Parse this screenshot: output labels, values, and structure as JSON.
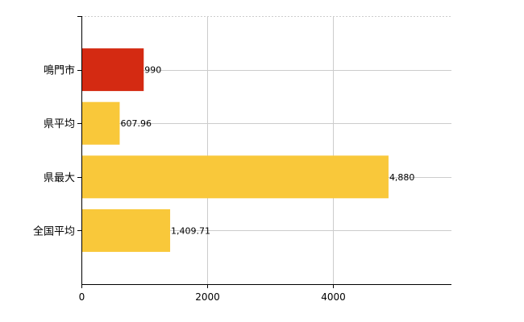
{
  "chart_data": {
    "type": "bar",
    "orientation": "horizontal",
    "categories": [
      "鳴門市",
      "県平均",
      "県最大",
      "全国平均"
    ],
    "values": [
      990,
      607.96,
      4880,
      1409.71
    ],
    "value_labels": [
      "990",
      "607.96",
      "4,880",
      "1,409.71"
    ],
    "bar_colors": [
      "#d42a12",
      "#f9c83a",
      "#f9c83a",
      "#f9c83a"
    ],
    "xlim": [
      0,
      5880
    ],
    "x_ticks": [
      0,
      2000,
      4000
    ],
    "x_tick_labels": [
      "0",
      "2000",
      "4000"
    ],
    "grid": true,
    "title": "",
    "xlabel": "",
    "ylabel": ""
  }
}
